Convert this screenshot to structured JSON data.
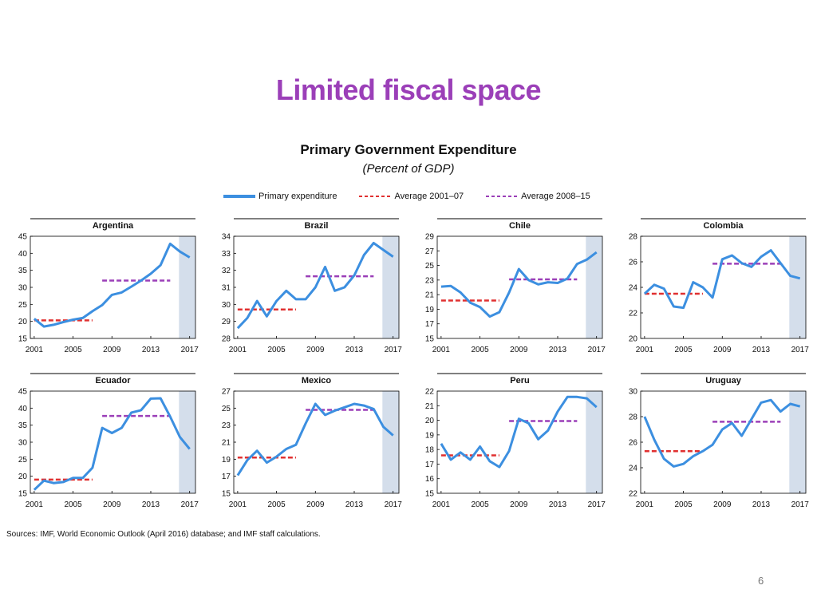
{
  "slide": {
    "title": "Limited fiscal space",
    "page_number": "6"
  },
  "figure": {
    "title": "Primary Government Expenditure",
    "subtitle": "(Percent of GDP)",
    "legend": {
      "primary": "Primary expenditure",
      "avg1": "Average 2001–07",
      "avg2": "Average 2008–15"
    },
    "source": "Sources: IMF, World Economic Outlook (April 2016) database; and IMF staff calculations."
  },
  "colors": {
    "series_line": "#3c8fe0",
    "avg_2001_07": "#e03030",
    "avg_2008_15": "#9b3fb8",
    "forecast_shade": "#d4deeb",
    "title_purple": "#9b3fb8"
  },
  "chart_data": [
    {
      "type": "line",
      "title": "Argentina",
      "x": [
        2001,
        2002,
        2003,
        2004,
        2005,
        2006,
        2007,
        2008,
        2009,
        2010,
        2011,
        2012,
        2013,
        2014,
        2015,
        2016,
        2017
      ],
      "xticks": [
        "2001",
        "2005",
        "2009",
        "2013",
        "2017"
      ],
      "ylim": [
        15,
        45
      ],
      "yticks": [
        15,
        20,
        25,
        30,
        35,
        40,
        45
      ],
      "series": [
        {
          "name": "Primary expenditure",
          "values": [
            20.8,
            18.5,
            19.0,
            19.8,
            20.5,
            21.0,
            23.0,
            24.8,
            27.8,
            28.5,
            30.2,
            32.0,
            34.0,
            36.5,
            42.8,
            40.5,
            38.8
          ]
        },
        {
          "name": "Average 2001–07",
          "level": 20.3,
          "range": [
            2001,
            2007
          ]
        },
        {
          "name": "Average 2008–15",
          "level": 32.0,
          "range": [
            2008,
            2015
          ]
        }
      ],
      "forecast_from": 2015.9
    },
    {
      "type": "line",
      "title": "Brazil",
      "x": [
        2001,
        2002,
        2003,
        2004,
        2005,
        2006,
        2007,
        2008,
        2009,
        2010,
        2011,
        2012,
        2013,
        2014,
        2015,
        2016,
        2017
      ],
      "xticks": [
        "2001",
        "2005",
        "2009",
        "2013",
        "2017"
      ],
      "ylim": [
        28,
        34
      ],
      "yticks": [
        28,
        29,
        30,
        31,
        32,
        33,
        34
      ],
      "series": [
        {
          "name": "Primary expenditure",
          "values": [
            28.6,
            29.2,
            30.2,
            29.3,
            30.2,
            30.8,
            30.3,
            30.3,
            31.0,
            32.2,
            30.8,
            31.0,
            31.7,
            32.9,
            33.6,
            33.2,
            32.8
          ]
        },
        {
          "name": "Average 2001–07",
          "level": 29.7,
          "range": [
            2001,
            2007
          ]
        },
        {
          "name": "Average 2008–15",
          "level": 31.65,
          "range": [
            2008,
            2015
          ]
        }
      ],
      "forecast_from": 2015.9
    },
    {
      "type": "line",
      "title": "Chile",
      "x": [
        2001,
        2002,
        2003,
        2004,
        2005,
        2006,
        2007,
        2008,
        2009,
        2010,
        2011,
        2012,
        2013,
        2014,
        2015,
        2016,
        2017
      ],
      "xticks": [
        "2001",
        "2005",
        "2009",
        "2013",
        "2017"
      ],
      "ylim": [
        15,
        29
      ],
      "yticks": [
        15,
        17,
        19,
        21,
        23,
        25,
        27,
        29
      ],
      "series": [
        {
          "name": "Primary expenditure",
          "values": [
            22.1,
            22.2,
            21.3,
            19.9,
            19.3,
            18.0,
            18.6,
            21.3,
            24.5,
            23.0,
            22.4,
            22.7,
            22.6,
            23.2,
            25.2,
            25.8,
            26.8
          ]
        },
        {
          "name": "Average 2001–07",
          "level": 20.2,
          "range": [
            2001,
            2007
          ]
        },
        {
          "name": "Average 2008–15",
          "level": 23.1,
          "range": [
            2008,
            2015
          ]
        }
      ],
      "forecast_from": 2015.9
    },
    {
      "type": "line",
      "title": "Colombia",
      "x": [
        2001,
        2002,
        2003,
        2004,
        2005,
        2006,
        2007,
        2008,
        2009,
        2010,
        2011,
        2012,
        2013,
        2014,
        2015,
        2016,
        2017
      ],
      "xticks": [
        "2001",
        "2005",
        "2009",
        "2013",
        "2017"
      ],
      "ylim": [
        20,
        28
      ],
      "yticks": [
        20,
        22,
        24,
        26,
        28
      ],
      "series": [
        {
          "name": "Primary expenditure",
          "values": [
            23.5,
            24.2,
            23.9,
            22.5,
            22.4,
            24.4,
            24.0,
            23.2,
            26.2,
            26.5,
            25.9,
            25.6,
            26.4,
            26.9,
            25.9,
            24.9,
            24.7
          ]
        },
        {
          "name": "Average 2001–07",
          "level": 23.5,
          "range": [
            2001,
            2007
          ]
        },
        {
          "name": "Average 2008–15",
          "level": 25.85,
          "range": [
            2008,
            2015
          ]
        }
      ],
      "forecast_from": 2015.9
    },
    {
      "type": "line",
      "title": "Ecuador",
      "x": [
        2001,
        2002,
        2003,
        2004,
        2005,
        2006,
        2007,
        2008,
        2009,
        2010,
        2011,
        2012,
        2013,
        2014,
        2015,
        2016,
        2017
      ],
      "xticks": [
        "2001",
        "2005",
        "2009",
        "2013",
        "2017"
      ],
      "ylim": [
        15,
        45
      ],
      "yticks": [
        15,
        20,
        25,
        30,
        35,
        40,
        45
      ],
      "series": [
        {
          "name": "Primary expenditure",
          "values": [
            16.0,
            18.7,
            18.0,
            18.3,
            19.5,
            19.5,
            22.5,
            34.2,
            32.7,
            34.2,
            38.7,
            39.4,
            42.8,
            42.9,
            37.5,
            31.5,
            28.0
          ]
        },
        {
          "name": "Average 2001–07",
          "level": 19.0,
          "range": [
            2001,
            2007
          ]
        },
        {
          "name": "Average 2008–15",
          "level": 37.7,
          "range": [
            2008,
            2015
          ]
        }
      ],
      "forecast_from": 2015.9
    },
    {
      "type": "line",
      "title": "Mexico",
      "x": [
        2001,
        2002,
        2003,
        2004,
        2005,
        2006,
        2007,
        2008,
        2009,
        2010,
        2011,
        2012,
        2013,
        2014,
        2015,
        2016,
        2017
      ],
      "xticks": [
        "2001",
        "2005",
        "2009",
        "2013",
        "2017"
      ],
      "ylim": [
        15,
        27
      ],
      "yticks": [
        15,
        17,
        19,
        21,
        23,
        25,
        27
      ],
      "series": [
        {
          "name": "Primary expenditure",
          "values": [
            17.1,
            18.9,
            20.0,
            18.6,
            19.3,
            20.2,
            20.7,
            23.2,
            25.5,
            24.2,
            24.7,
            25.1,
            25.5,
            25.3,
            24.9,
            22.8,
            21.8
          ]
        },
        {
          "name": "Average 2001–07",
          "level": 19.2,
          "range": [
            2001,
            2007
          ]
        },
        {
          "name": "Average 2008–15",
          "level": 24.8,
          "range": [
            2008,
            2015
          ]
        }
      ],
      "forecast_from": 2015.9
    },
    {
      "type": "line",
      "title": "Peru",
      "x": [
        2001,
        2002,
        2003,
        2004,
        2005,
        2006,
        2007,
        2008,
        2009,
        2010,
        2011,
        2012,
        2013,
        2014,
        2015,
        2016,
        2017
      ],
      "xticks": [
        "2001",
        "2005",
        "2009",
        "2013",
        "2017"
      ],
      "ylim": [
        15,
        22
      ],
      "yticks": [
        15,
        16,
        17,
        18,
        19,
        20,
        21,
        22
      ],
      "series": [
        {
          "name": "Primary expenditure",
          "values": [
            18.4,
            17.3,
            17.8,
            17.3,
            18.2,
            17.2,
            16.8,
            17.9,
            20.1,
            19.8,
            18.7,
            19.3,
            20.6,
            21.6,
            21.6,
            21.5,
            20.9
          ]
        },
        {
          "name": "Average 2001–07",
          "level": 17.6,
          "range": [
            2001,
            2007
          ]
        },
        {
          "name": "Average 2008–15",
          "level": 19.95,
          "range": [
            2008,
            2015
          ]
        }
      ],
      "forecast_from": 2015.9
    },
    {
      "type": "line",
      "title": "Uruguay",
      "x": [
        2001,
        2002,
        2003,
        2004,
        2005,
        2006,
        2007,
        2008,
        2009,
        2010,
        2011,
        2012,
        2013,
        2014,
        2015,
        2016,
        2017
      ],
      "xticks": [
        "2001",
        "2005",
        "2009",
        "2013",
        "2017"
      ],
      "ylim": [
        22,
        30
      ],
      "yticks": [
        22,
        24,
        26,
        28,
        30
      ],
      "series": [
        {
          "name": "Primary expenditure",
          "values": [
            28.0,
            26.2,
            24.7,
            24.1,
            24.3,
            24.9,
            25.3,
            25.8,
            27.0,
            27.5,
            26.5,
            27.8,
            29.1,
            29.3,
            28.4,
            29.0,
            28.8
          ]
        },
        {
          "name": "Average 2001–07",
          "level": 25.3,
          "range": [
            2001,
            2007
          ]
        },
        {
          "name": "Average 2008–15",
          "level": 27.6,
          "range": [
            2008,
            2015
          ]
        }
      ],
      "forecast_from": 2015.9
    }
  ]
}
